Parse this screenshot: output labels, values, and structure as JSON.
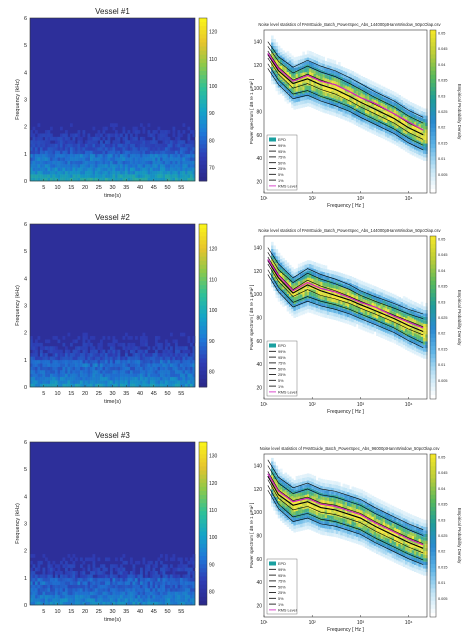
{
  "chart_data": [
    {
      "type": "heatmap",
      "title": "Vessel #1",
      "xlabel": "time(s)",
      "ylabel": "Frequency (kHz)",
      "xticks": [
        "5",
        "10",
        "15",
        "20",
        "25",
        "30",
        "35",
        "40",
        "45",
        "50",
        "55"
      ],
      "yticks": [
        "0",
        "1",
        "2",
        "3",
        "4",
        "5",
        "6"
      ],
      "xlim": [
        0,
        60
      ],
      "ylim": [
        0,
        6
      ],
      "colorbar_ticks": [
        "120",
        "110",
        "100",
        "90",
        "80",
        "70"
      ],
      "colorbar_range": [
        65,
        125
      ],
      "colormap": [
        "#2b2a8c",
        "#2f3db5",
        "#1f78d8",
        "#14a5c8",
        "#2fc196",
        "#8cc94a",
        "#e7c42d",
        "#f9f21b"
      ],
      "background_color": "#2d2f9a",
      "noise_level": 0.55
    },
    {
      "type": "line",
      "title": "Noise level statistics of PAMGuide_Batch_PowerSpec_Abs_144000ptHannWindow_50pcOlap.csv",
      "xlabel": "Frequency [ Hz ]",
      "ylabel": "Power spectrum [ dB re 1 µPa² ]",
      "colorbar_label": "Empirical Probability Density",
      "xticks": [
        "10¹",
        "10²",
        "10³",
        "10⁴"
      ],
      "xlog": true,
      "xlim": [
        10,
        24000
      ],
      "yticks": [
        "140",
        "120",
        "100",
        "80",
        "60",
        "40",
        "20"
      ],
      "ylim": [
        10,
        150
      ],
      "colorbar_ticks": [
        "0.05",
        "0.045",
        "0.04",
        "0.035",
        "0.03",
        "0.025",
        "0.02",
        "0.015",
        "0.01",
        "0.005"
      ],
      "legend": [
        "EPD",
        "99%",
        "95%",
        "75%",
        "50%",
        "25%",
        "5%",
        "1%",
        "RMS Level"
      ],
      "legend_colors": [
        "#1aa0a0",
        "#000000",
        "#000000",
        "#000000",
        "#000000",
        "#000000",
        "#000000",
        "#000000",
        "#d020c0"
      ],
      "x": [
        12,
        20,
        40,
        80,
        150,
        300,
        600,
        1000,
        2000,
        5000,
        10000,
        20000
      ],
      "percentile_series": [
        {
          "name": "99%",
          "values": [
            140,
            127,
            118,
            124,
            119,
            115,
            109,
            104,
            97,
            89,
            81,
            75
          ]
        },
        {
          "name": "95%",
          "values": [
            136,
            123,
            113,
            119,
            114,
            110,
            104,
            99,
            92,
            84,
            76,
            70
          ]
        },
        {
          "name": "75%",
          "values": [
            132,
            118,
            107,
            112,
            107,
            103,
            97,
            92,
            86,
            78,
            70,
            64
          ]
        },
        {
          "name": "50%",
          "values": [
            129,
            115,
            104,
            108,
            103,
            99,
            93,
            88,
            82,
            74,
            66,
            60
          ]
        },
        {
          "name": "25%",
          "values": [
            126,
            112,
            100,
            104,
            99,
            95,
            89,
            84,
            78,
            70,
            62,
            56
          ]
        },
        {
          "name": "5%",
          "values": [
            121,
            107,
            95,
            98,
            93,
            89,
            84,
            79,
            73,
            65,
            57,
            51
          ]
        },
        {
          "name": "1%",
          "values": [
            117,
            103,
            91,
            94,
            89,
            85,
            80,
            75,
            69,
            61,
            53,
            47
          ]
        }
      ],
      "rms": [
        130,
        117,
        106,
        111,
        106,
        103,
        97,
        92,
        87,
        78,
        71,
        64
      ]
    },
    {
      "type": "heatmap",
      "title": "Vessel #2",
      "xlabel": "time(s)",
      "ylabel": "Frequency (kHz)",
      "xticks": [
        "5",
        "10",
        "15",
        "20",
        "25",
        "30",
        "35",
        "40",
        "45",
        "50",
        "55"
      ],
      "yticks": [
        "0",
        "1",
        "2",
        "3",
        "4",
        "5",
        "6"
      ],
      "xlim": [
        0,
        60
      ],
      "ylim": [
        0,
        6
      ],
      "colorbar_ticks": [
        "120",
        "110",
        "100",
        "90",
        "80"
      ],
      "colorbar_range": [
        75,
        128
      ],
      "colormap": [
        "#2b2a8c",
        "#2f3db5",
        "#1f78d8",
        "#14a5c8",
        "#2fc196",
        "#8cc94a",
        "#e7c42d",
        "#f9f21b"
      ],
      "background_color": "#2d2f9a",
      "noise_level": 0.45
    },
    {
      "type": "line",
      "title": "Noise level statistics of PAMGuide_Batch_PowerSpec_Abs_144000ptHannWindow_50pcOlap.csv",
      "xlabel": "Frequency [ Hz ]",
      "ylabel": "Power spectrum [ dB re 1 µPa² ]",
      "colorbar_label": "Empirical Probability Density",
      "xticks": [
        "10¹",
        "10²",
        "10³",
        "10⁴"
      ],
      "xlog": true,
      "xlim": [
        10,
        24000
      ],
      "yticks": [
        "140",
        "120",
        "100",
        "80",
        "60",
        "40",
        "20"
      ],
      "ylim": [
        10,
        150
      ],
      "colorbar_ticks": [
        "0.05",
        "0.045",
        "0.04",
        "0.035",
        "0.03",
        "0.025",
        "0.02",
        "0.015",
        "0.01",
        "0.005"
      ],
      "legend": [
        "EPD",
        "99%",
        "95%",
        "75%",
        "50%",
        "25%",
        "5%",
        "1%",
        "RMS Level"
      ],
      "legend_colors": [
        "#1aa0a0",
        "#000000",
        "#000000",
        "#000000",
        "#000000",
        "#000000",
        "#000000",
        "#000000",
        "#d020c0"
      ],
      "x": [
        12,
        20,
        40,
        80,
        150,
        300,
        600,
        1000,
        2000,
        5000,
        10000,
        20000
      ],
      "percentile_series": [
        {
          "name": "99%",
          "values": [
            140,
            126,
            114,
            122,
            117,
            113,
            108,
            103,
            98,
            92,
            87,
            83
          ]
        },
        {
          "name": "95%",
          "values": [
            136,
            121,
            110,
            118,
            113,
            109,
            104,
            99,
            94,
            88,
            83,
            79
          ]
        },
        {
          "name": "75%",
          "values": [
            132,
            117,
            104,
            112,
            107,
            103,
            98,
            94,
            89,
            82,
            77,
            72
          ]
        },
        {
          "name": "50%",
          "values": [
            129,
            114,
            101,
            108,
            103,
            99,
            95,
            91,
            86,
            79,
            73,
            68
          ]
        },
        {
          "name": "25%",
          "values": [
            126,
            111,
            98,
            104,
            99,
            96,
            92,
            88,
            83,
            76,
            70,
            65
          ]
        },
        {
          "name": "5%",
          "values": [
            121,
            106,
            93,
            98,
            94,
            91,
            87,
            83,
            78,
            71,
            64,
            58
          ]
        },
        {
          "name": "1%",
          "values": [
            117,
            102,
            89,
            94,
            90,
            87,
            83,
            79,
            74,
            67,
            60,
            54
          ]
        }
      ],
      "rms": [
        130,
        116,
        103,
        110,
        105,
        102,
        97,
        93,
        89,
        81,
        76,
        71
      ]
    },
    {
      "type": "heatmap",
      "title": "Vessel #3",
      "xlabel": "time(s)",
      "ylabel": "Frequency (kHz)",
      "xticks": [
        "5",
        "10",
        "15",
        "20",
        "25",
        "30",
        "35",
        "40",
        "45",
        "50",
        "55"
      ],
      "yticks": [
        "0",
        "1",
        "2",
        "3",
        "4",
        "5",
        "6"
      ],
      "xlim": [
        0,
        60
      ],
      "ylim": [
        0,
        6
      ],
      "colorbar_ticks": [
        "130",
        "120",
        "110",
        "100",
        "90",
        "80"
      ],
      "colorbar_range": [
        75,
        135
      ],
      "colormap": [
        "#2b2a8c",
        "#2f3db5",
        "#1f78d8",
        "#14a5c8",
        "#2fc196",
        "#8cc94a",
        "#e7c42d",
        "#f9f21b"
      ],
      "background_color": "#2d2f9a",
      "noise_level": 0.4
    },
    {
      "type": "line",
      "title": "Noise level statistics of PAMGuide_Batch_PowerSpec_Abs_96000ptHannWindow_50pcOlap.csv",
      "xlabel": "Frequency [ Hz ]",
      "ylabel": "Power spectrum [ dB re 1 µPa² ]",
      "colorbar_label": "Empirical Probability Density",
      "xticks": [
        "10¹",
        "10²",
        "10³",
        "10⁴"
      ],
      "xlog": true,
      "xlim": [
        10,
        24000
      ],
      "yticks": [
        "140",
        "120",
        "100",
        "80",
        "60",
        "40",
        "20"
      ],
      "ylim": [
        10,
        150
      ],
      "colorbar_ticks": [
        "0.05",
        "0.045",
        "0.04",
        "0.035",
        "0.03",
        "0.025",
        "0.02",
        "0.015",
        "0.01",
        "0.005"
      ],
      "legend": [
        "EPD",
        "99%",
        "95%",
        "75%",
        "50%",
        "25%",
        "5%",
        "1%",
        "RMS Level"
      ],
      "legend_colors": [
        "#1aa0a0",
        "#000000",
        "#000000",
        "#000000",
        "#000000",
        "#000000",
        "#000000",
        "#000000",
        "#d020c0"
      ],
      "x": [
        12,
        20,
        40,
        80,
        150,
        300,
        600,
        1000,
        2000,
        5000,
        10000,
        20000
      ],
      "percentile_series": [
        {
          "name": "99%",
          "values": [
            145,
            130,
            121,
            125,
            120,
            118,
            114,
            111,
            104,
            96,
            90,
            85
          ]
        },
        {
          "name": "95%",
          "values": [
            140,
            125,
            116,
            120,
            115,
            113,
            109,
            106,
            99,
            91,
            85,
            80
          ]
        },
        {
          "name": "75%",
          "values": [
            135,
            119,
            110,
            113,
            108,
            106,
            102,
            99,
            92,
            84,
            78,
            73
          ]
        },
        {
          "name": "50%",
          "values": [
            131,
            115,
            106,
            109,
            104,
            102,
            98,
            95,
            88,
            80,
            74,
            69
          ]
        },
        {
          "name": "25%",
          "values": [
            128,
            112,
            102,
            105,
            100,
            98,
            94,
            91,
            84,
            76,
            70,
            65
          ]
        },
        {
          "name": "5%",
          "values": [
            123,
            107,
            96,
            99,
            94,
            92,
            88,
            85,
            78,
            70,
            64,
            59
          ]
        },
        {
          "name": "1%",
          "values": [
            119,
            103,
            92,
            95,
            90,
            88,
            84,
            81,
            74,
            66,
            60,
            55
          ]
        }
      ],
      "rms": [
        133,
        118,
        109,
        112,
        107,
        105,
        101,
        98,
        91,
        83,
        77,
        72
      ]
    }
  ]
}
